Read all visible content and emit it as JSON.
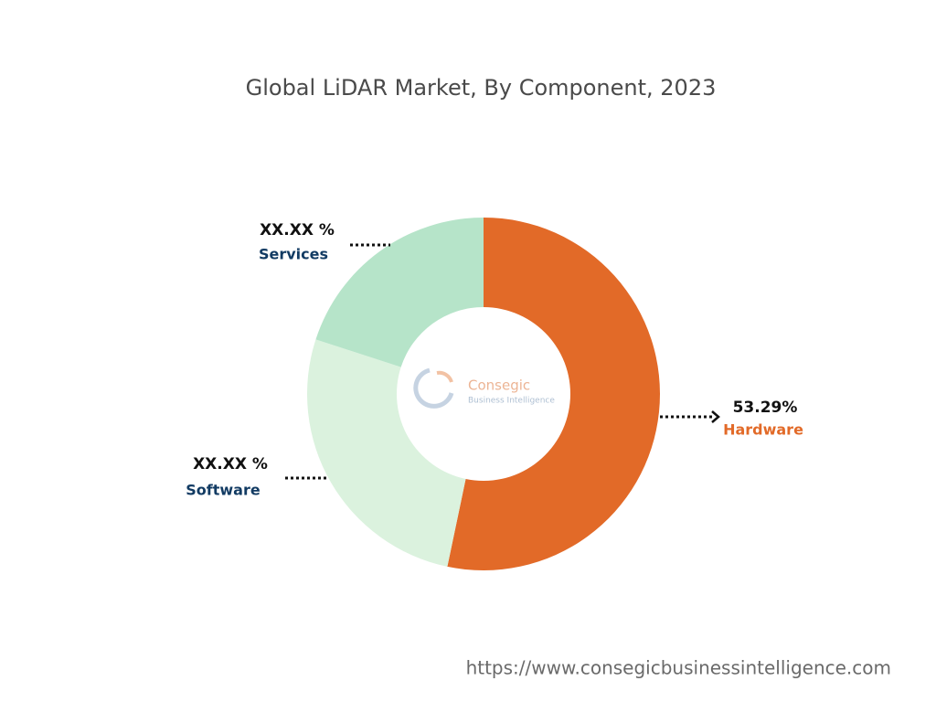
{
  "chart_data": {
    "type": "donut",
    "title": "Global LiDAR Market, By Component, 2023",
    "categories": [
      "Hardware",
      "Software",
      "Services"
    ],
    "values": [
      53.29,
      26.71,
      20.0
    ],
    "value_labels": [
      "53.29%",
      "XX.XX %",
      "XX.XX %"
    ],
    "colors": [
      "#e26a28",
      "#dbf2de",
      "#b6e4c9"
    ]
  },
  "watermark": {
    "name": "Consegic",
    "tagline": "Business Intelligence"
  },
  "source_url": "https://www.consegicbusinessintelligence.com"
}
